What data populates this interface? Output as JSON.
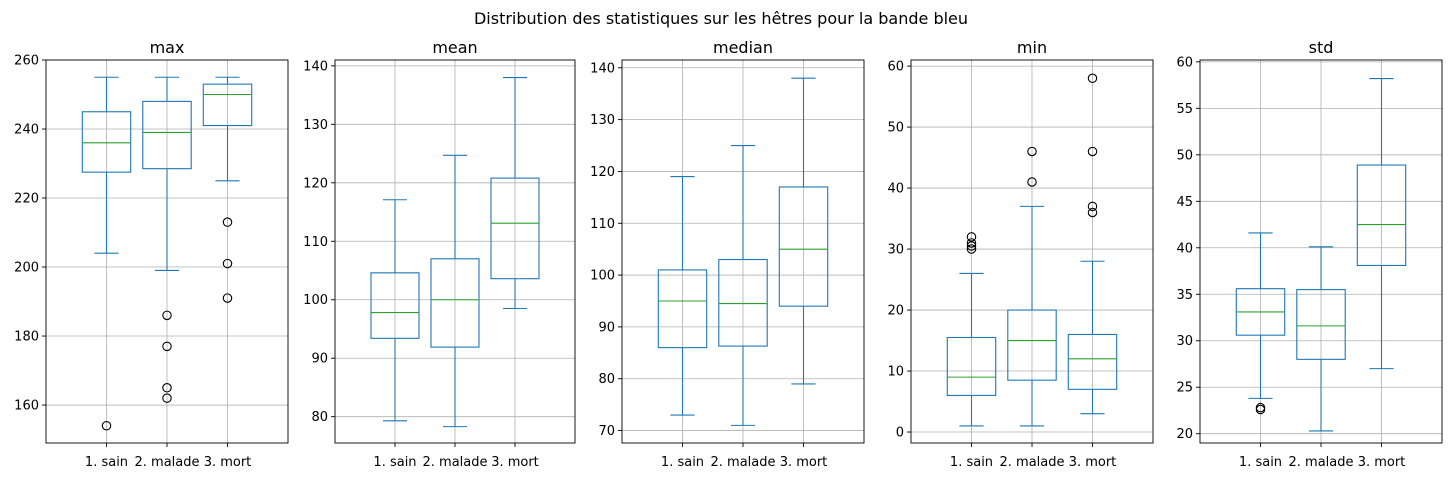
{
  "chart_data": {
    "suptitle": "Distribution des statistiques sur les hêtres pour la bande bleu",
    "type": "box",
    "categories": [
      "1. sain",
      "2. malade",
      "3. mort"
    ],
    "grid": true,
    "box_color": "#1f77b4",
    "median_color": "#2ca02c",
    "panels": [
      {
        "title": "max",
        "ylim": [
          149,
          260
        ],
        "yticks": [
          160,
          180,
          200,
          220,
          240,
          260
        ],
        "boxes": [
          {
            "whislo": 204,
            "q1": 227.5,
            "med": 236,
            "q3": 245,
            "whishi": 255,
            "fliers": [
              154
            ]
          },
          {
            "whislo": 199,
            "q1": 228.5,
            "med": 239,
            "q3": 248,
            "whishi": 255,
            "fliers": [
              186,
              177,
              165,
              162
            ]
          },
          {
            "whislo": 225,
            "q1": 241,
            "med": 250,
            "q3": 253,
            "whishi": 255,
            "fliers": [
              213,
              201,
              191
            ]
          }
        ]
      },
      {
        "title": "mean",
        "ylim": [
          75.5,
          141
        ],
        "yticks": [
          80,
          90,
          100,
          110,
          120,
          130,
          140
        ],
        "boxes": [
          {
            "whislo": 79.3,
            "q1": 93.4,
            "med": 97.8,
            "q3": 104.6,
            "whishi": 117.1,
            "fliers": []
          },
          {
            "whislo": 78.3,
            "q1": 91.9,
            "med": 100,
            "q3": 107,
            "whishi": 124.7,
            "fliers": []
          },
          {
            "whislo": 98.5,
            "q1": 103.6,
            "med": 113.1,
            "q3": 120.8,
            "whishi": 138,
            "fliers": []
          }
        ]
      },
      {
        "title": "median",
        "ylim": [
          67.6,
          141.5
        ],
        "yticks": [
          70,
          80,
          90,
          100,
          110,
          120,
          130,
          140
        ],
        "boxes": [
          {
            "whislo": 73,
            "q1": 86,
            "med": 95,
            "q3": 101,
            "whishi": 119,
            "fliers": []
          },
          {
            "whislo": 71,
            "q1": 86.3,
            "med": 94.5,
            "q3": 103,
            "whishi": 125,
            "fliers": []
          },
          {
            "whislo": 79,
            "q1": 94,
            "med": 105,
            "q3": 117,
            "whishi": 138,
            "fliers": []
          }
        ]
      },
      {
        "title": "min",
        "ylim": [
          -1.8,
          61
        ],
        "yticks": [
          0,
          10,
          20,
          30,
          40,
          50,
          60
        ],
        "boxes": [
          {
            "whislo": 1,
            "q1": 6,
            "med": 9,
            "q3": 15.5,
            "whishi": 26,
            "fliers": [
              30,
              30.5,
              31,
              32
            ]
          },
          {
            "whislo": 1,
            "q1": 8.5,
            "med": 15,
            "q3": 20,
            "whishi": 37,
            "fliers": [
              41,
              46
            ]
          },
          {
            "whislo": 3,
            "q1": 7,
            "med": 12,
            "q3": 16,
            "whishi": 28,
            "fliers": [
              36,
              37,
              46,
              58
            ]
          }
        ]
      },
      {
        "title": "std",
        "ylim": [
          19,
          60.2
        ],
        "yticks": [
          20,
          25,
          30,
          35,
          40,
          45,
          50,
          55,
          60
        ],
        "boxes": [
          {
            "whislo": 23.8,
            "q1": 30.6,
            "med": 33.1,
            "q3": 35.6,
            "whishi": 41.6,
            "fliers": [
              22.6,
              22.8
            ]
          },
          {
            "whislo": 20.3,
            "q1": 28,
            "med": 31.6,
            "q3": 35.5,
            "whishi": 40.1,
            "fliers": []
          },
          {
            "whislo": 27,
            "q1": 38.1,
            "med": 42.5,
            "q3": 48.9,
            "whishi": 58.2,
            "fliers": []
          }
        ]
      }
    ]
  }
}
